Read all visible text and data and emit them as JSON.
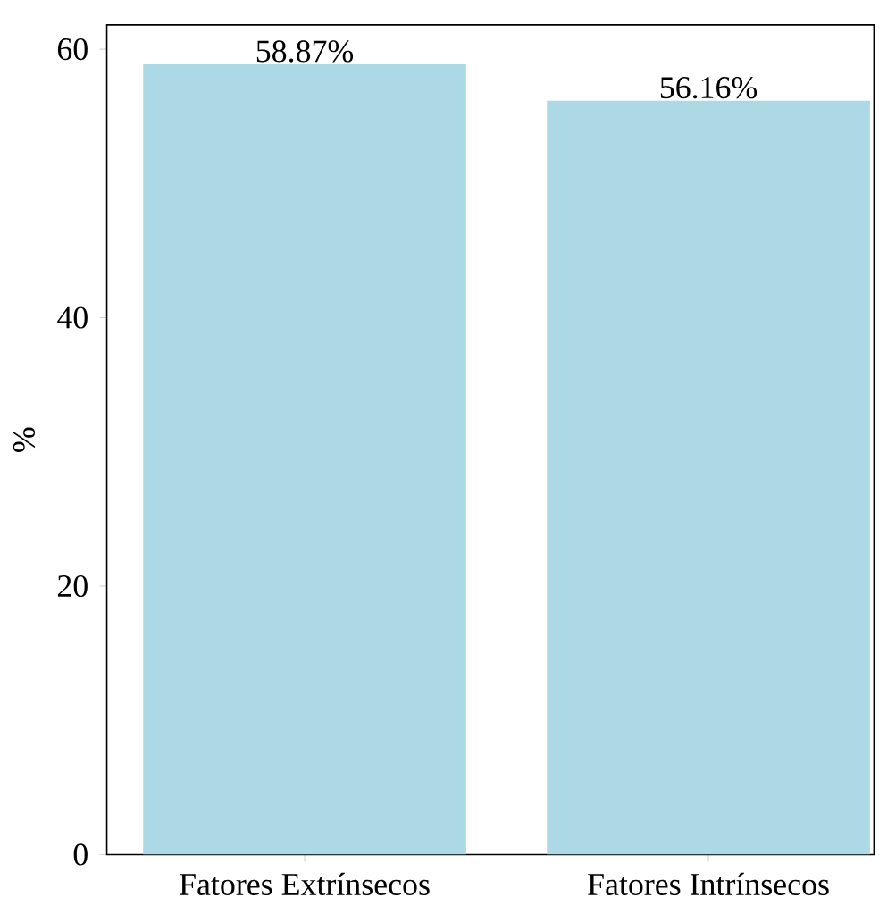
{
  "chart_data": {
    "type": "bar",
    "ylabel": "%",
    "categories": [
      "Fatores Extrínsecos",
      "Fatores Intrínsecos"
    ],
    "values": [
      58.87,
      56.16
    ],
    "color": "#add8e6",
    "value_labels": [
      "58.87%",
      "56.16%"
    ],
    "ylim": [
      0,
      61.81
    ],
    "yticks": [
      0,
      20,
      40,
      60
    ],
    "grid": false
  }
}
